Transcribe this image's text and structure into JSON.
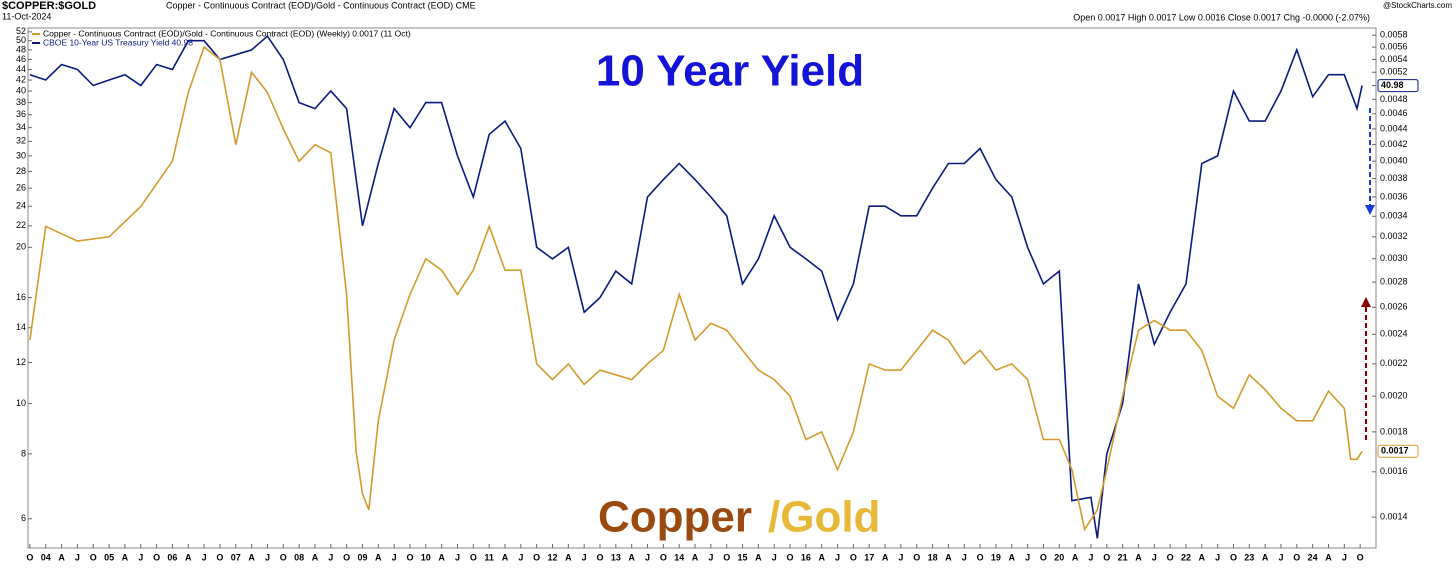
{
  "header": {
    "symbol": "$COPPER:$GOLD",
    "description": "Copper - Continuous Contract (EOD)/Gold - Continuous Contract (EOD) CME",
    "date": "11-Oct-2024",
    "quote": "Open 0.0017 High 0.0017 Low 0.0016 Close 0.0017 Chg -0.0000 (-2.07%)",
    "source": "@StockCharts.com"
  },
  "chart_data": {
    "type": "line",
    "annotations": {
      "yield": "10 Year Yield",
      "copper": "Copper",
      "gold": "/Gold"
    },
    "series": [
      {
        "name": "CBOE 10-Year US Treasury Yield 40.98",
        "color": "#0b1a80",
        "axis": "y",
        "last_label": "40.98",
        "x": [
          2003.75,
          2004,
          2004.25,
          2004.5,
          2004.75,
          2005,
          2005.25,
          2005.5,
          2005.75,
          2006,
          2006.25,
          2006.5,
          2006.75,
          2007,
          2007.25,
          2007.5,
          2007.75,
          2008,
          2008.25,
          2008.5,
          2008.75,
          2009,
          2009.25,
          2009.5,
          2009.75,
          2010,
          2010.25,
          2010.5,
          2010.75,
          2011,
          2011.25,
          2011.5,
          2011.75,
          2012,
          2012.25,
          2012.5,
          2012.75,
          2013,
          2013.25,
          2013.5,
          2013.75,
          2014,
          2014.25,
          2014.5,
          2014.75,
          2015,
          2015.25,
          2015.5,
          2015.75,
          2016,
          2016.25,
          2016.5,
          2016.75,
          2017,
          2017.25,
          2017.5,
          2017.75,
          2018,
          2018.25,
          2018.5,
          2018.75,
          2019,
          2019.25,
          2019.5,
          2019.75,
          2020,
          2020.2,
          2020.5,
          2020.6,
          2020.75,
          2021,
          2021.25,
          2021.5,
          2021.75,
          2022,
          2022.25,
          2022.5,
          2022.75,
          2023,
          2023.25,
          2023.5,
          2023.75,
          2024,
          2024.25,
          2024.5,
          2024.7,
          2024.78
        ],
        "values": [
          43,
          42,
          45,
          44,
          41,
          42,
          43,
          41,
          45,
          44,
          50,
          50,
          46,
          47,
          48,
          51,
          46,
          38,
          37,
          40,
          37,
          22,
          29,
          37,
          34,
          38,
          38,
          30,
          25,
          33,
          35,
          31,
          20,
          19,
          20,
          15,
          16,
          18,
          17,
          25,
          27,
          29,
          27,
          25,
          23,
          17,
          19,
          23,
          20,
          19,
          18,
          14.5,
          17,
          24,
          24,
          23,
          23,
          26,
          29,
          29,
          31,
          27,
          25,
          20,
          17,
          18,
          6.5,
          6.6,
          5.5,
          8,
          10,
          17,
          13,
          15,
          17,
          29,
          30,
          40,
          35,
          35,
          40,
          48,
          39,
          43,
          43,
          37,
          40.98
        ]
      },
      {
        "name": "Copper - Continuous Contract (EOD)/Gold - Continuous Contract (EOD) (Weekly) 0.0017 (11 Oct)",
        "color": "#d29b2c",
        "axis": "y2",
        "last_label": "0.0017",
        "x": [
          2003.75,
          2004,
          2004.5,
          2005,
          2005.5,
          2006,
          2006.25,
          2006.5,
          2006.75,
          2007,
          2007.25,
          2007.5,
          2007.75,
          2008,
          2008.25,
          2008.5,
          2008.75,
          2008.9,
          2009,
          2009.1,
          2009.25,
          2009.5,
          2009.75,
          2010,
          2010.25,
          2010.5,
          2010.75,
          2011,
          2011.25,
          2011.5,
          2011.75,
          2012,
          2012.25,
          2012.5,
          2012.75,
          2013,
          2013.25,
          2013.5,
          2013.75,
          2014,
          2014.25,
          2014.5,
          2014.75,
          2015,
          2015.25,
          2015.5,
          2015.75,
          2016,
          2016.25,
          2016.5,
          2016.75,
          2017,
          2017.25,
          2017.5,
          2017.75,
          2018,
          2018.25,
          2018.5,
          2018.75,
          2019,
          2019.25,
          2019.5,
          2019.75,
          2020,
          2020.2,
          2020.4,
          2020.6,
          2020.75,
          2021,
          2021.25,
          2021.5,
          2021.75,
          2022,
          2022.25,
          2022.5,
          2022.75,
          2023,
          2023.25,
          2023.5,
          2023.75,
          2024,
          2024.25,
          2024.5,
          2024.6,
          2024.7,
          2024.78
        ],
        "values": [
          0.00236,
          0.0033,
          0.00316,
          0.0032,
          0.0035,
          0.004,
          0.0049,
          0.0056,
          0.0054,
          0.0042,
          0.0052,
          0.0049,
          0.0044,
          0.004,
          0.0042,
          0.0041,
          0.0027,
          0.0017,
          0.0015,
          0.00143,
          0.00186,
          0.00236,
          0.0027,
          0.003,
          0.0029,
          0.0027,
          0.0029,
          0.0033,
          0.0029,
          0.0029,
          0.0022,
          0.0021,
          0.0022,
          0.00207,
          0.00216,
          0.00213,
          0.0021,
          0.0022,
          0.00229,
          0.0027,
          0.00236,
          0.00248,
          0.00243,
          0.00229,
          0.00216,
          0.0021,
          0.002,
          0.00176,
          0.0018,
          0.00161,
          0.0018,
          0.0022,
          0.00216,
          0.00216,
          0.00229,
          0.00243,
          0.00236,
          0.0022,
          0.00229,
          0.00216,
          0.0022,
          0.0021,
          0.00176,
          0.00176,
          0.00161,
          0.00135,
          0.00143,
          0.00161,
          0.002,
          0.00243,
          0.0025,
          0.00243,
          0.00243,
          0.00229,
          0.002,
          0.00193,
          0.00213,
          0.00204,
          0.00193,
          0.00186,
          0.00186,
          0.00203,
          0.00193,
          0.00166,
          0.00166,
          0.0017
        ]
      }
    ],
    "ylog": true,
    "y2log": true,
    "ylim": [
      5.27,
      52.9
    ],
    "yticks": [
      6,
      8,
      10,
      12,
      14,
      16,
      20,
      22,
      24,
      26,
      28,
      30,
      32,
      34,
      36,
      38,
      40,
      42,
      44,
      46,
      48,
      50,
      52
    ],
    "y2lim": [
      0.001278,
      0.005925
    ],
    "y2ticks": [
      0.0014,
      0.0016,
      0.0018,
      {
        "value": 0.002,
        "label": "0.0020"
      },
      0.0022,
      0.0024,
      0.0026,
      0.0028,
      {
        "value": 0.003,
        "label": "0.0030"
      },
      0.0032,
      0.0034,
      0.0036,
      0.0038,
      {
        "value": 0.004,
        "label": "0.0040"
      },
      0.0042,
      0.0044,
      0.0046,
      0.0048,
      {
        "value": 0.005,
        "label": "0.0050"
      },
      0.0052,
      0.0054,
      0.0056,
      0.0058
    ],
    "xlim": [
      2003.72,
      2025.0
    ],
    "xticks": [
      {
        "value": 2003.75,
        "label": "O"
      },
      {
        "value": 2004,
        "label": "04"
      },
      {
        "value": 2004.25,
        "label": "A"
      },
      {
        "value": 2004.5,
        "label": "J"
      },
      {
        "value": 2004.75,
        "label": "O"
      },
      {
        "value": 2005,
        "label": "05"
      },
      {
        "value": 2005.25,
        "label": "A"
      },
      {
        "value": 2005.5,
        "label": "J"
      },
      {
        "value": 2005.75,
        "label": "O"
      },
      {
        "value": 2006,
        "label": "06"
      },
      {
        "value": 2006.25,
        "label": "A"
      },
      {
        "value": 2006.5,
        "label": "J"
      },
      {
        "value": 2006.75,
        "label": "O"
      },
      {
        "value": 2007,
        "label": "07"
      },
      {
        "value": 2007.25,
        "label": "A"
      },
      {
        "value": 2007.5,
        "label": "J"
      },
      {
        "value": 2007.75,
        "label": "O"
      },
      {
        "value": 2008,
        "label": "08"
      },
      {
        "value": 2008.25,
        "label": "A"
      },
      {
        "value": 2008.5,
        "label": "J"
      },
      {
        "value": 2008.75,
        "label": "O"
      },
      {
        "value": 2009,
        "label": "09"
      },
      {
        "value": 2009.25,
        "label": "A"
      },
      {
        "value": 2009.5,
        "label": "J"
      },
      {
        "value": 2009.75,
        "label": "O"
      },
      {
        "value": 2010,
        "label": "10"
      },
      {
        "value": 2010.25,
        "label": "A"
      },
      {
        "value": 2010.5,
        "label": "J"
      },
      {
        "value": 2010.75,
        "label": "O"
      },
      {
        "value": 2011,
        "label": "11"
      },
      {
        "value": 2011.25,
        "label": "A"
      },
      {
        "value": 2011.5,
        "label": "J"
      },
      {
        "value": 2011.75,
        "label": "O"
      },
      {
        "value": 2012,
        "label": "12"
      },
      {
        "value": 2012.25,
        "label": "A"
      },
      {
        "value": 2012.5,
        "label": "J"
      },
      {
        "value": 2012.75,
        "label": "O"
      },
      {
        "value": 2013,
        "label": "13"
      },
      {
        "value": 2013.25,
        "label": "A"
      },
      {
        "value": 2013.5,
        "label": "J"
      },
      {
        "value": 2013.75,
        "label": "O"
      },
      {
        "value": 2014,
        "label": "14"
      },
      {
        "value": 2014.25,
        "label": "A"
      },
      {
        "value": 2014.5,
        "label": "J"
      },
      {
        "value": 2014.75,
        "label": "O"
      },
      {
        "value": 2015,
        "label": "15"
      },
      {
        "value": 2015.25,
        "label": "A"
      },
      {
        "value": 2015.5,
        "label": "J"
      },
      {
        "value": 2015.75,
        "label": "O"
      },
      {
        "value": 2016,
        "label": "16"
      },
      {
        "value": 2016.25,
        "label": "A"
      },
      {
        "value": 2016.5,
        "label": "J"
      },
      {
        "value": 2016.75,
        "label": "O"
      },
      {
        "value": 2017,
        "label": "17"
      },
      {
        "value": 2017.25,
        "label": "A"
      },
      {
        "value": 2017.5,
        "label": "J"
      },
      {
        "value": 2017.75,
        "label": "O"
      },
      {
        "value": 2018,
        "label": "18"
      },
      {
        "value": 2018.25,
        "label": "A"
      },
      {
        "value": 2018.5,
        "label": "J"
      },
      {
        "value": 2018.75,
        "label": "O"
      },
      {
        "value": 2019,
        "label": "19"
      },
      {
        "value": 2019.25,
        "label": "A"
      },
      {
        "value": 2019.5,
        "label": "J"
      },
      {
        "value": 2019.75,
        "label": "O"
      },
      {
        "value": 2020,
        "label": "20"
      },
      {
        "value": 2020.25,
        "label": "A"
      },
      {
        "value": 2020.5,
        "label": "J"
      },
      {
        "value": 2020.75,
        "label": "O"
      },
      {
        "value": 2021,
        "label": "21"
      },
      {
        "value": 2021.25,
        "label": "A"
      },
      {
        "value": 2021.5,
        "label": "J"
      },
      {
        "value": 2021.75,
        "label": "O"
      },
      {
        "value": 2022,
        "label": "22"
      },
      {
        "value": 2022.25,
        "label": "A"
      },
      {
        "value": 2022.5,
        "label": "J"
      },
      {
        "value": 2022.75,
        "label": "O"
      },
      {
        "value": 2023,
        "label": "23"
      },
      {
        "value": 2023.25,
        "label": "A"
      },
      {
        "value": 2023.5,
        "label": "J"
      },
      {
        "value": 2023.75,
        "label": "O"
      },
      {
        "value": 2024,
        "label": "24"
      },
      {
        "value": 2024.25,
        "label": "A"
      },
      {
        "value": 2024.5,
        "label": "J"
      },
      {
        "value": 2024.75,
        "label": "O"
      }
    ],
    "grid": false
  }
}
